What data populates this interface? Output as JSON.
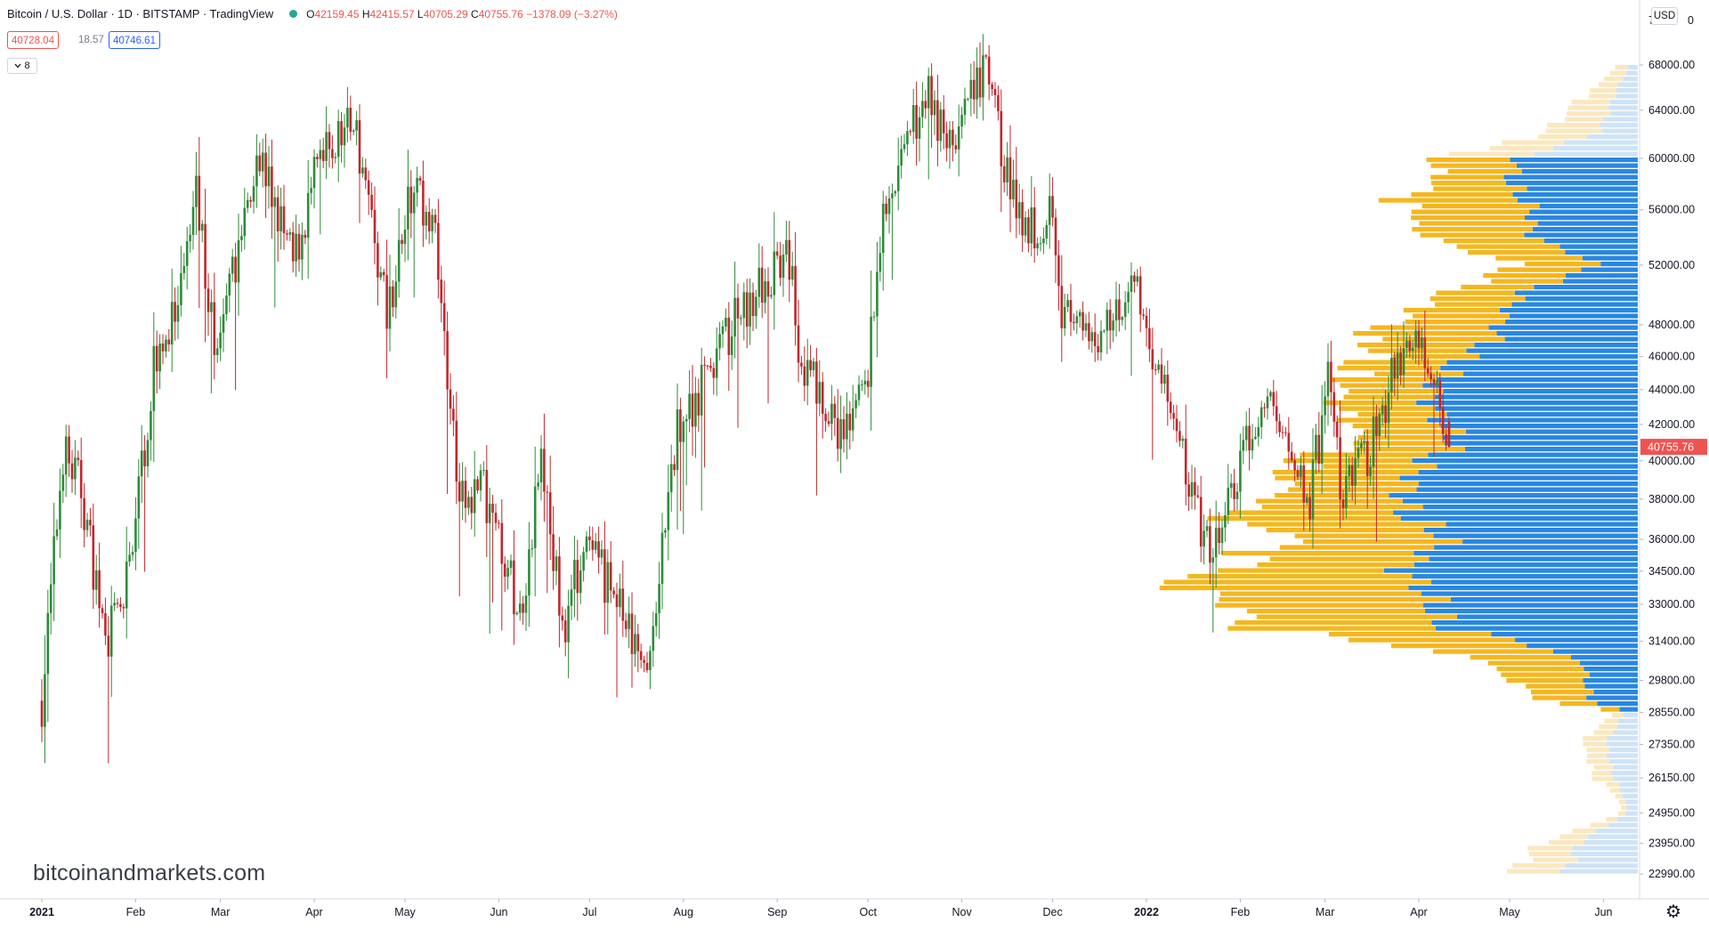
{
  "header": {
    "symbol": "Bitcoin / U.S. Dollar · 1D · BITSTAMP · TradingView",
    "open_label": "O",
    "open": "42159.45",
    "high_label": "H",
    "high": "42415.57",
    "low_label": "L",
    "low": "40705.29",
    "close_label": "C",
    "close": "40755.76",
    "change": "−1378.09 (−3.27%)"
  },
  "quote": {
    "bid": "40728.04",
    "spread": "18.57",
    "ask": "40746.61"
  },
  "indicator_toggle": {
    "count": "8",
    "icon": "chevron-down-icon"
  },
  "currency_button": "USD",
  "last_price_label": "40755.76",
  "watermark": "bitcoinandmarkets.com",
  "colors": {
    "up": "#2e8b3a",
    "down": "#c2272d",
    "last_price": "#ef5350",
    "vp_up": "#f5b71f",
    "vp_down": "#2a87e0",
    "vp_up_faint": "#fbe8c0",
    "vp_down_faint": "#cfe3f6"
  },
  "chart_data": {
    "type": "candlestick",
    "title": "Bitcoin / U.S. Dollar",
    "interval": "1D",
    "exchange": "BITSTAMP",
    "y_axis": {
      "scale": "log",
      "ticks": [
        "68000.00",
        "64000.00",
        "60000.00",
        "56000.00",
        "52000.00",
        "48000.00",
        "46000.00",
        "44000.00",
        "42000.00",
        "40000.00",
        "38000.00",
        "36000.00",
        "34500.00",
        "33000.00",
        "31400.00",
        "29800.00",
        "28550.00",
        "27350.00",
        "26150.00",
        "24950.00",
        "23950.00",
        "22990.00"
      ],
      "top_clipped_label": "7",
      "top_clipped_suffix": "0"
    },
    "x_axis": {
      "labels": [
        {
          "text": "2021",
          "bold": true
        },
        {
          "text": "Feb",
          "bold": false
        },
        {
          "text": "Mar",
          "bold": false
        },
        {
          "text": "Apr",
          "bold": false
        },
        {
          "text": "May",
          "bold": false
        },
        {
          "text": "Jun",
          "bold": false
        },
        {
          "text": "Jul",
          "bold": false
        },
        {
          "text": "Aug",
          "bold": false
        },
        {
          "text": "Sep",
          "bold": false
        },
        {
          "text": "Oct",
          "bold": false
        },
        {
          "text": "Nov",
          "bold": false
        },
        {
          "text": "Dec",
          "bold": false
        },
        {
          "text": "2022",
          "bold": true
        },
        {
          "text": "Feb",
          "bold": false
        },
        {
          "text": "Mar",
          "bold": false
        },
        {
          "text": "Apr",
          "bold": false
        },
        {
          "text": "May",
          "bold": false
        },
        {
          "text": "Jun",
          "bold": false
        }
      ]
    },
    "anchors": [
      [
        "2021-01-01",
        29000
      ],
      [
        "2021-01-08",
        40500
      ],
      [
        "2021-01-14",
        38500
      ],
      [
        "2021-01-22",
        31500
      ],
      [
        "2021-01-28",
        33000
      ],
      [
        "2021-02-08",
        46500
      ],
      [
        "2021-02-15",
        48500
      ],
      [
        "2021-02-21",
        57000
      ],
      [
        "2021-02-28",
        45500
      ],
      [
        "2021-03-13",
        61000
      ],
      [
        "2021-03-25",
        52000
      ],
      [
        "2021-04-02",
        59000
      ],
      [
        "2021-04-14",
        63500
      ],
      [
        "2021-04-25",
        49000
      ],
      [
        "2021-05-03",
        57000
      ],
      [
        "2021-05-10",
        56000
      ],
      [
        "2021-05-19",
        37500
      ],
      [
        "2021-05-26",
        39000
      ],
      [
        "2021-06-08",
        32500
      ],
      [
        "2021-06-15",
        40000
      ],
      [
        "2021-06-22",
        32000
      ],
      [
        "2021-06-29",
        35500
      ],
      [
        "2021-07-08",
        33800
      ],
      [
        "2021-07-20",
        29800
      ],
      [
        "2021-07-30",
        41500
      ],
      [
        "2021-08-13",
        46500
      ],
      [
        "2021-08-22",
        49500
      ],
      [
        "2021-09-06",
        52500
      ],
      [
        "2021-09-08",
        46500
      ],
      [
        "2021-09-21",
        41000
      ],
      [
        "2021-09-30",
        43800
      ],
      [
        "2021-10-06",
        55000
      ],
      [
        "2021-10-15",
        61500
      ],
      [
        "2021-10-20",
        66000
      ],
      [
        "2021-10-28",
        61000
      ],
      [
        "2021-11-09",
        67500
      ],
      [
        "2021-11-18",
        56500
      ],
      [
        "2021-11-26",
        54500
      ],
      [
        "2021-12-01",
        57000
      ],
      [
        "2021-12-04",
        49000
      ],
      [
        "2021-12-13",
        46500
      ],
      [
        "2021-12-27",
        50800
      ],
      [
        "2022-01-04",
        46000
      ],
      [
        "2022-01-10",
        42000
      ],
      [
        "2022-01-22",
        35000
      ],
      [
        "2022-02-05",
        41500
      ],
      [
        "2022-02-10",
        43500
      ],
      [
        "2022-02-24",
        38000
      ],
      [
        "2022-03-02",
        44300
      ],
      [
        "2022-03-07",
        38000
      ],
      [
        "2022-03-18",
        41500
      ],
      [
        "2022-03-28",
        47500
      ],
      [
        "2022-04-05",
        46000
      ],
      [
        "2022-04-11",
        40755.76
      ]
    ],
    "last_candle": {
      "date": "2022-04-11",
      "open": 42159.45,
      "high": 42415.57,
      "low": 40705.29,
      "close": 40755.76
    },
    "volume_profile": {
      "value_area_low": 28550,
      "value_area_high": 60000,
      "buckets": [
        [
          68000,
          0.4,
          0.3
        ],
        [
          66000,
          1.0,
          0.8
        ],
        [
          64000,
          1.6,
          1.2
        ],
        [
          62000,
          2.2,
          1.6
        ],
        [
          60000,
          3.4,
          4.8
        ],
        [
          58000,
          3.0,
          5.2
        ],
        [
          57000,
          5.2,
          4.8
        ],
        [
          56000,
          5.0,
          4.3
        ],
        [
          54000,
          4.2,
          4.3
        ],
        [
          52000,
          3.2,
          1.6
        ],
        [
          50000,
          3.4,
          4.8
        ],
        [
          48000,
          4.4,
          5.6
        ],
        [
          47000,
          6.0,
          5.8
        ],
        [
          46000,
          4.0,
          7.2
        ],
        [
          44000,
          3.8,
          8.3
        ],
        [
          43000,
          3.6,
          8.4
        ],
        [
          42000,
          3.5,
          7.9
        ],
        [
          41000,
          4.2,
          7.4
        ],
        [
          40000,
          5.2,
          8.6
        ],
        [
          38000,
          5.6,
          9.5
        ],
        [
          37000,
          8.4,
          9.3
        ],
        [
          36000,
          6.2,
          7.6
        ],
        [
          34500,
          8.0,
          9.6
        ],
        [
          34000,
          9.8,
          8.9
        ],
        [
          33000,
          8.2,
          8.3
        ],
        [
          32000,
          8.4,
          8.1
        ],
        [
          31400,
          6.8,
          4.8
        ],
        [
          30500,
          4.2,
          2.2
        ],
        [
          29800,
          2.8,
          2.1
        ],
        [
          29000,
          2.4,
          2.0
        ],
        [
          28550,
          0.4,
          0.5
        ],
        [
          27350,
          1.0,
          1.3
        ],
        [
          26150,
          0.8,
          1.0
        ],
        [
          25500,
          0.3,
          0.6
        ],
        [
          24950,
          0.2,
          0.4
        ],
        [
          23950,
          1.6,
          2.4
        ],
        [
          22990,
          2.4,
          3.0
        ]
      ]
    }
  }
}
